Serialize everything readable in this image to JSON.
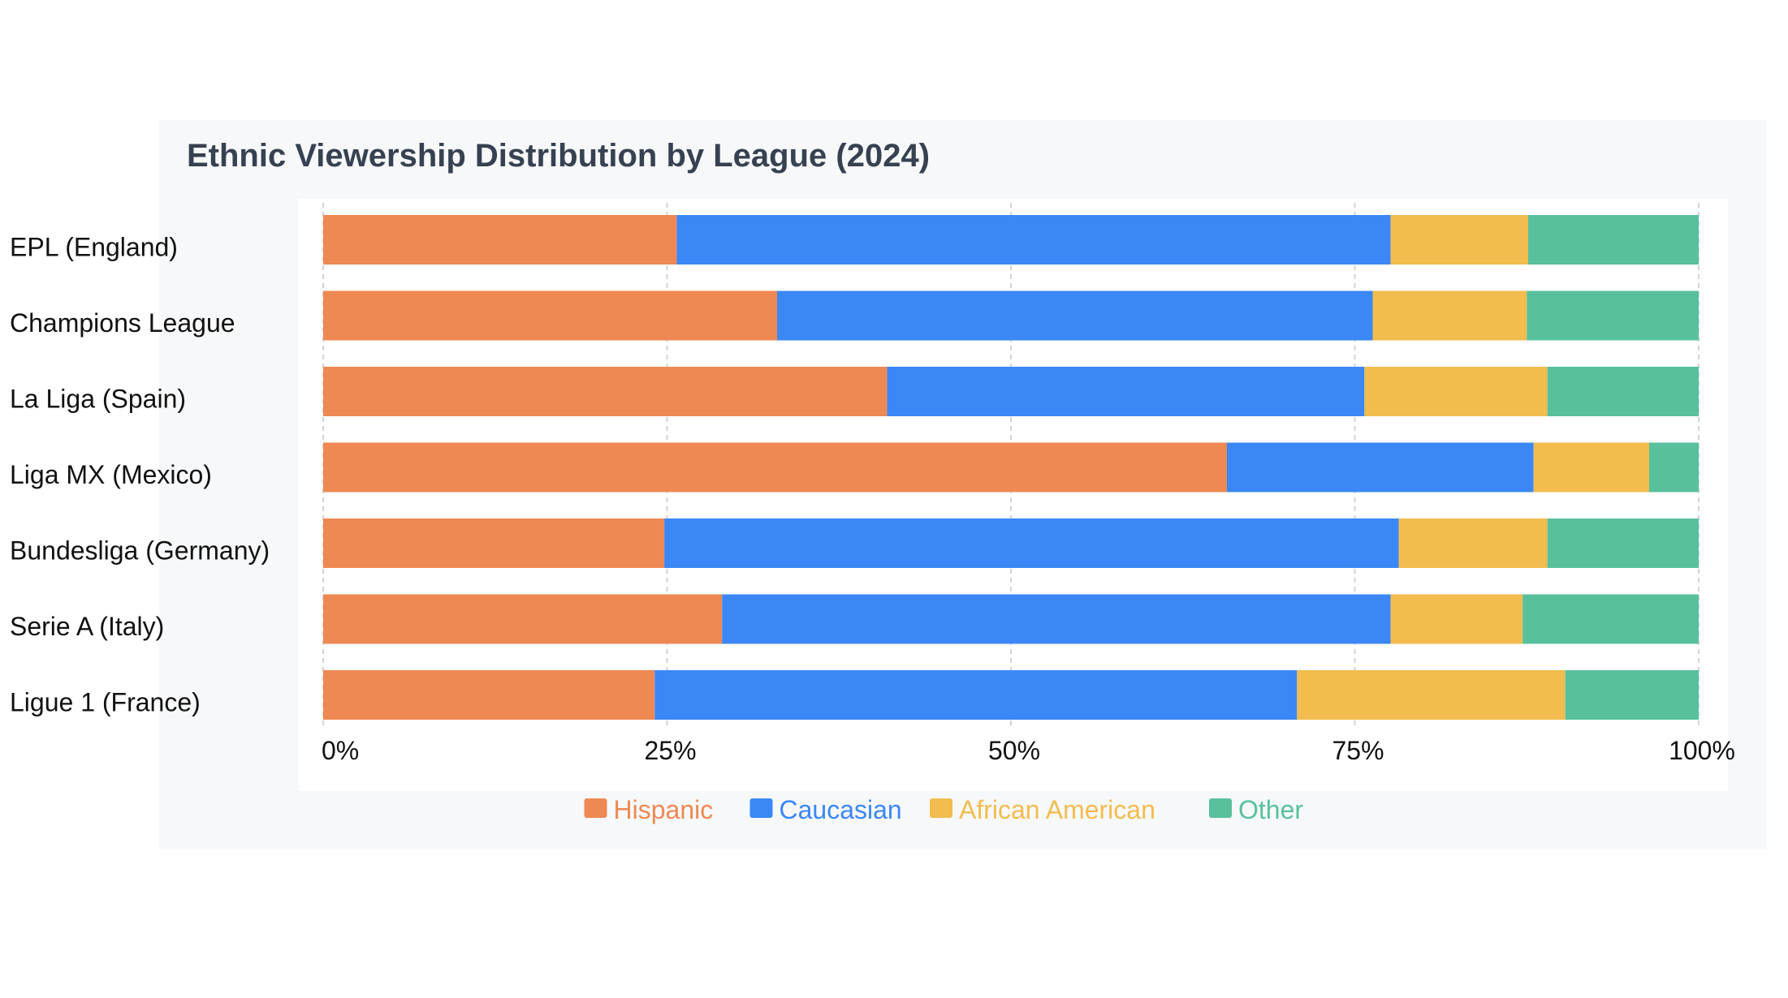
{
  "chart_data": {
    "type": "bar",
    "orientation": "horizontal",
    "stacked": true,
    "title": "Ethnic Viewership Distribution by League (2024)",
    "categories": [
      "EPL (England)",
      "Champions League",
      "La Liga (Spain)",
      "Liga MX (Mexico)",
      "Bundesliga (Germany)",
      "Serie A (Italy)",
      "Ligue 1 (France)"
    ],
    "series": [
      {
        "name": "Hispanic",
        "color": "#ee8953",
        "values": [
          25.7,
          33.0,
          41.0,
          65.7,
          24.8,
          29.0,
          24.1
        ]
      },
      {
        "name": "Caucasian",
        "color": "#3b87f5",
        "values": [
          51.9,
          43.3,
          34.7,
          22.3,
          53.4,
          48.6,
          46.7
        ]
      },
      {
        "name": "African American",
        "color": "#f3bc4e",
        "values": [
          10.0,
          11.2,
          13.3,
          8.4,
          10.8,
          9.6,
          19.5
        ]
      },
      {
        "name": "Other",
        "color": "#58c19c",
        "values": [
          12.4,
          12.5,
          11.0,
          3.6,
          11.0,
          12.8,
          9.7
        ]
      }
    ],
    "xticks": [
      "0%",
      "25%",
      "50%",
      "75%",
      "100%"
    ],
    "xlim": [
      0,
      100
    ],
    "grid": true,
    "legend": "bottom"
  }
}
